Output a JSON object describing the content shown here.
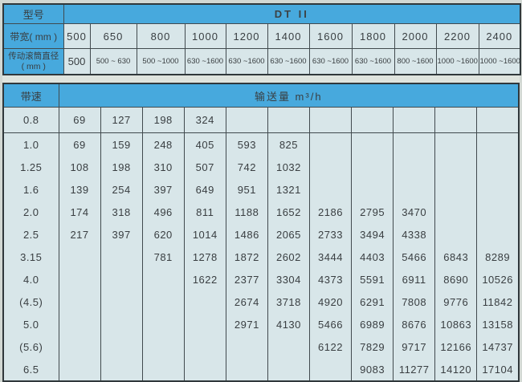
{
  "colors": {
    "header_blue": "#47a9dd",
    "cell_background": "#d8e6e9",
    "grid_line": "#414a4e",
    "text": "#393e41"
  },
  "spec_table": {
    "model_label": "型号",
    "model_value": "DT II",
    "width_label": "带宽( mm )",
    "widths": [
      "500",
      "650",
      "800",
      "1000",
      "1200",
      "1400",
      "1600",
      "1800",
      "2000",
      "2200",
      "2400"
    ],
    "diameter_label_line1": "传动滚筒直径",
    "diameter_label_line2": "( mm )",
    "diameters": [
      "500",
      "500 ~ 630",
      "500 ~1000",
      "630 ~1600",
      "630 ~1600",
      "630 ~1600",
      "630 ~1600",
      "630 ~1600",
      "800 ~1600",
      "1000 ~1600",
      "1000 ~1600"
    ]
  },
  "capacity_table": {
    "speed_label": "带速",
    "capacity_label": "输送量 m³/h",
    "rows": [
      {
        "speed": "0.8",
        "values": [
          "69",
          "127",
          "198",
          "324",
          "",
          "",
          "",
          "",
          "",
          "",
          ""
        ]
      },
      {
        "speed": "1.0",
        "values": [
          "69",
          "159",
          "248",
          "405",
          "593",
          "825",
          "",
          "",
          "",
          "",
          ""
        ]
      },
      {
        "speed": "1.25",
        "values": [
          "108",
          "198",
          "310",
          "507",
          "742",
          "1032",
          "",
          "",
          "",
          "",
          ""
        ]
      },
      {
        "speed": "1.6",
        "values": [
          "139",
          "254",
          "397",
          "649",
          "951",
          "1321",
          "",
          "",
          "",
          "",
          ""
        ]
      },
      {
        "speed": "2.0",
        "values": [
          "174",
          "318",
          "496",
          "811",
          "1188",
          "1652",
          "2186",
          "2795",
          "3470",
          "",
          ""
        ]
      },
      {
        "speed": "2.5",
        "values": [
          "217",
          "397",
          "620",
          "1014",
          "1486",
          "2065",
          "2733",
          "3494",
          "4338",
          "",
          ""
        ]
      },
      {
        "speed": "3.15",
        "values": [
          "",
          "",
          "781",
          "1278",
          "1872",
          "2602",
          "3444",
          "4403",
          "5466",
          "6843",
          "8289"
        ]
      },
      {
        "speed": "4.0",
        "values": [
          "",
          "",
          "",
          "1622",
          "2377",
          "3304",
          "4373",
          "5591",
          "6911",
          "8690",
          "10526"
        ]
      },
      {
        "speed": "(4.5)",
        "values": [
          "",
          "",
          "",
          "",
          "2674",
          "3718",
          "4920",
          "6291",
          "7808",
          "9776",
          "11842"
        ]
      },
      {
        "speed": "5.0",
        "values": [
          "",
          "",
          "",
          "",
          "2971",
          "4130",
          "5466",
          "6989",
          "8676",
          "10863",
          "13158"
        ]
      },
      {
        "speed": "(5.6)",
        "values": [
          "",
          "",
          "",
          "",
          "",
          "",
          "6122",
          "7829",
          "9717",
          "12166",
          "14737"
        ]
      },
      {
        "speed": "6.5",
        "values": [
          "",
          "",
          "",
          "",
          "",
          "",
          "",
          "9083",
          "11277",
          "14120",
          "17104"
        ]
      }
    ]
  }
}
